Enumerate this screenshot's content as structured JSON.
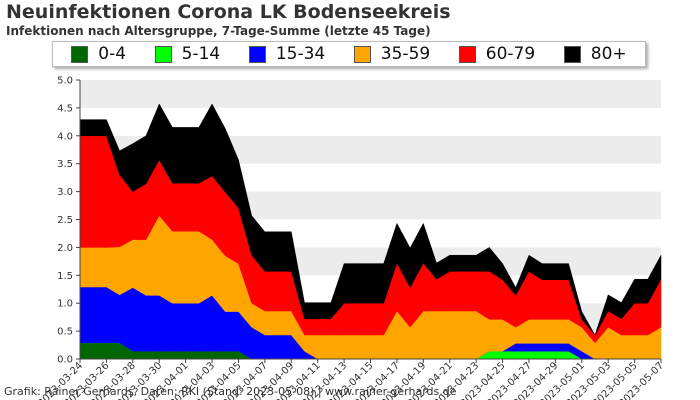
{
  "title": "Neuinfektionen Corona LK Bodenseekreis",
  "subtitle": "Infektionen nach Altersgruppe, 7-Tage-Summe (letzte 45 Tage)",
  "footer": "Grafik: Rainer Gerhards, Daten: RKI (Stand: 2023-05-08) | www.rainer-gerhards.de",
  "chart_data": {
    "type": "area",
    "stacked": true,
    "title": "Neuinfektionen Corona LK Bodenseekreis",
    "subtitle": "Infektionen nach Altersgruppe, 7-Tage-Summe (letzte 45 Tage)",
    "legend_position": "top",
    "grid": "alternating horizontal bands",
    "ylim": [
      0,
      5
    ],
    "yticks": [
      "0.0",
      "0.5",
      "1.0",
      "1.5",
      "2.0",
      "2.5",
      "3.0",
      "3.5",
      "4.0",
      "4.5",
      "5.0"
    ],
    "x": [
      "2023-03-24",
      "2023-03-25",
      "2023-03-26",
      "2023-03-27",
      "2023-03-28",
      "2023-03-29",
      "2023-03-30",
      "2023-03-31",
      "2023-04-01",
      "2023-04-02",
      "2023-04-03",
      "2023-04-04",
      "2023-04-05",
      "2023-04-06",
      "2023-04-07",
      "2023-04-08",
      "2023-04-09",
      "2023-04-10",
      "2023-04-11",
      "2023-04-12",
      "2023-04-13",
      "2023-04-14",
      "2023-04-15",
      "2023-04-16",
      "2023-04-17",
      "2023-04-18",
      "2023-04-19",
      "2023-04-20",
      "2023-04-21",
      "2023-04-22",
      "2023-04-23",
      "2023-04-24",
      "2023-04-25",
      "2023-04-26",
      "2023-04-27",
      "2023-04-28",
      "2023-04-29",
      "2023-04-30",
      "2023-05-01",
      "2023-05-02",
      "2023-05-03",
      "2023-05-04",
      "2023-05-05",
      "2023-05-06",
      "2023-05-07"
    ],
    "xtick_labels": [
      "2023-03-24",
      "2023-03-26",
      "2023-03-28",
      "2023-03-30",
      "2023-04-01",
      "2023-04-03",
      "2023-04-05",
      "2023-04-07",
      "2023-04-09",
      "2023-04-11",
      "2023-04-13",
      "2023-04-15",
      "2023-04-17",
      "2023-04-19",
      "2023-04-21",
      "2023-04-23",
      "2023-04-25",
      "2023-04-27",
      "2023-04-29",
      "2023-05-01",
      "2023-05-03",
      "2023-05-05",
      "2023-05-07"
    ],
    "series": [
      {
        "name": "0-4",
        "color": "#006600",
        "values": [
          0.29,
          0.29,
          0.29,
          0.29,
          0.14,
          0.14,
          0.14,
          0.14,
          0.14,
          0.14,
          0.14,
          0.14,
          0.14,
          0.0,
          0,
          0,
          0,
          0,
          0,
          0,
          0,
          0,
          0,
          0,
          0,
          0,
          0,
          0,
          0,
          0,
          0,
          0,
          0,
          0,
          0,
          0,
          0,
          0,
          0,
          0,
          0,
          0,
          0,
          0,
          0
        ]
      },
      {
        "name": "5-14",
        "color": "#00ff00",
        "values": [
          0,
          0,
          0,
          0,
          0,
          0,
          0,
          0,
          0,
          0,
          0,
          0,
          0,
          0,
          0,
          0,
          0,
          0,
          0,
          0,
          0,
          0,
          0,
          0,
          0,
          0,
          0,
          0,
          0,
          0,
          0,
          0.14,
          0.14,
          0.14,
          0.14,
          0.14,
          0.14,
          0.14,
          0,
          0,
          0,
          0,
          0,
          0,
          0
        ]
      },
      {
        "name": "15-34",
        "color": "#0000ff",
        "values": [
          1.0,
          1.0,
          1.0,
          0.86,
          1.14,
          1.0,
          1.0,
          0.86,
          0.86,
          0.86,
          1.0,
          0.71,
          0.71,
          0.57,
          0.43,
          0.43,
          0.43,
          0.14,
          0,
          0,
          0,
          0,
          0,
          0,
          0,
          0,
          0,
          0,
          0,
          0,
          0,
          0,
          0,
          0.14,
          0.14,
          0.14,
          0.14,
          0.14,
          0.14,
          0,
          0,
          0,
          0,
          0,
          0
        ]
      },
      {
        "name": "35-59",
        "color": "#ffa500",
        "values": [
          0.71,
          0.71,
          0.71,
          0.86,
          0.86,
          1.0,
          1.43,
          1.29,
          1.29,
          1.29,
          1.0,
          1.0,
          0.86,
          0.43,
          0.43,
          0.43,
          0.43,
          0.29,
          0.43,
          0.43,
          0.43,
          0.43,
          0.43,
          0.43,
          0.86,
          0.57,
          0.86,
          0.86,
          0.86,
          0.86,
          0.86,
          0.57,
          0.57,
          0.29,
          0.43,
          0.43,
          0.43,
          0.43,
          0.43,
          0.29,
          0.57,
          0.43,
          0.43,
          0.43,
          0.57
        ]
      },
      {
        "name": "60-79",
        "color": "#ff0000",
        "values": [
          2.0,
          2.0,
          2.0,
          1.29,
          0.86,
          1.0,
          1.0,
          0.86,
          0.86,
          0.86,
          1.14,
          1.14,
          1.0,
          0.86,
          0.71,
          0.71,
          0.71,
          0.29,
          0.29,
          0.29,
          0.57,
          0.57,
          0.57,
          0.57,
          0.86,
          0.71,
          0.86,
          0.57,
          0.71,
          0.71,
          0.71,
          0.86,
          0.71,
          0.57,
          0.86,
          0.71,
          0.71,
          0.71,
          0.14,
          0.14,
          0.29,
          0.29,
          0.57,
          0.57,
          0.86
        ]
      },
      {
        "name": "80+",
        "color": "#000000",
        "values": [
          0.29,
          0.29,
          0.29,
          0.43,
          0.86,
          0.86,
          1.0,
          1.0,
          1.0,
          1.0,
          1.29,
          1.14,
          0.86,
          0.71,
          0.71,
          0.71,
          0.71,
          0.29,
          0.29,
          0.29,
          0.71,
          0.71,
          0.71,
          0.71,
          0.71,
          0.71,
          0.71,
          0.29,
          0.29,
          0.29,
          0.29,
          0.43,
          0.29,
          0.14,
          0.29,
          0.29,
          0.29,
          0.29,
          0.14,
          0.0,
          0.29,
          0.29,
          0.43,
          0.43,
          0.43
        ]
      }
    ]
  }
}
